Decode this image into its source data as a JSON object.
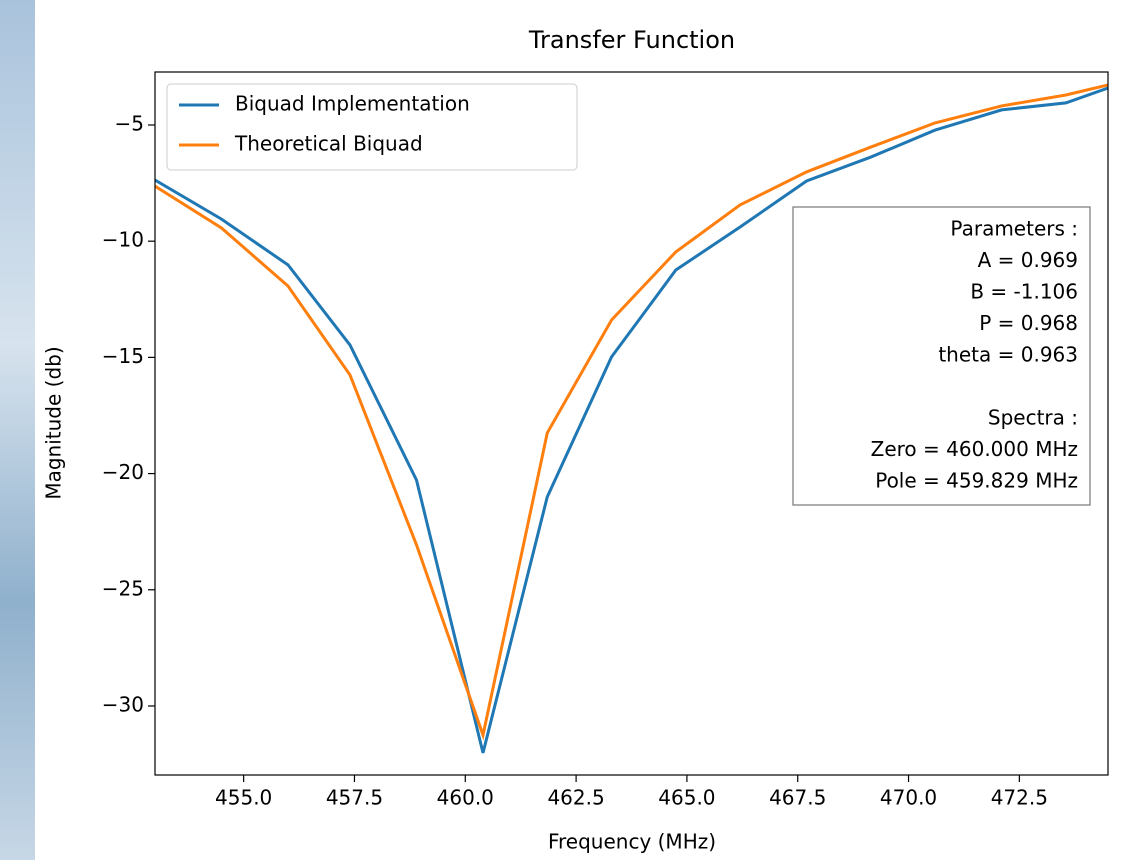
{
  "chart_data": {
    "type": "line",
    "title": "Transfer Function",
    "xlabel": "Frequency (MHz)",
    "ylabel": "Magnitude (db)",
    "x": [
      453.0,
      454.5,
      456.0,
      457.4,
      458.9,
      460.4,
      461.85,
      463.3,
      464.75,
      466.2,
      467.7,
      469.15,
      470.6,
      472.1,
      473.55,
      474.5
    ],
    "series": [
      {
        "name": "Biquad Implementation",
        "color": "#1f77b4",
        "values": [
          -7.37,
          -9.05,
          -11.02,
          -14.47,
          -20.28,
          -32.02,
          -21.0,
          -14.98,
          -11.24,
          -9.39,
          -7.41,
          -6.38,
          -5.22,
          -4.35,
          -4.05,
          -3.41
        ]
      },
      {
        "name": "Theoretical Biquad",
        "color": "#ff7f0e",
        "values": [
          -7.63,
          -9.43,
          -11.93,
          -15.76,
          -23.07,
          -31.25,
          -18.25,
          -13.39,
          -10.46,
          -8.44,
          -7.02,
          -5.95,
          -4.91,
          -4.18,
          -3.71,
          -3.28
        ]
      }
    ],
    "xlim": [
      453.0,
      474.5
    ],
    "ylim": [
      -32.97,
      -2.72
    ],
    "xticks": [
      {
        "value": 455,
        "label": "455.0"
      },
      {
        "value": 457.5,
        "label": "457.5"
      },
      {
        "value": 460,
        "label": "460.0"
      },
      {
        "value": 462.5,
        "label": "462.5"
      },
      {
        "value": 465,
        "label": "465.0"
      },
      {
        "value": 467.5,
        "label": "467.5"
      },
      {
        "value": 470,
        "label": "470.0"
      },
      {
        "value": 472.5,
        "label": "472.5"
      }
    ],
    "yticks": [
      {
        "value": -30,
        "label": "−30"
      },
      {
        "value": -25,
        "label": "−25"
      },
      {
        "value": -20,
        "label": "−20"
      },
      {
        "value": -15,
        "label": "−15"
      },
      {
        "value": -10,
        "label": "−10"
      },
      {
        "value": -5,
        "label": "−5"
      }
    ],
    "legend": "upper left",
    "annotation": [
      "Parameters :",
      "A = 0.969",
      "B = -1.106",
      "P = 0.968",
      "theta = 0.963",
      "",
      "Spectra :",
      "Zero = 460.000 MHz",
      "Pole = 459.829 MHz"
    ]
  }
}
